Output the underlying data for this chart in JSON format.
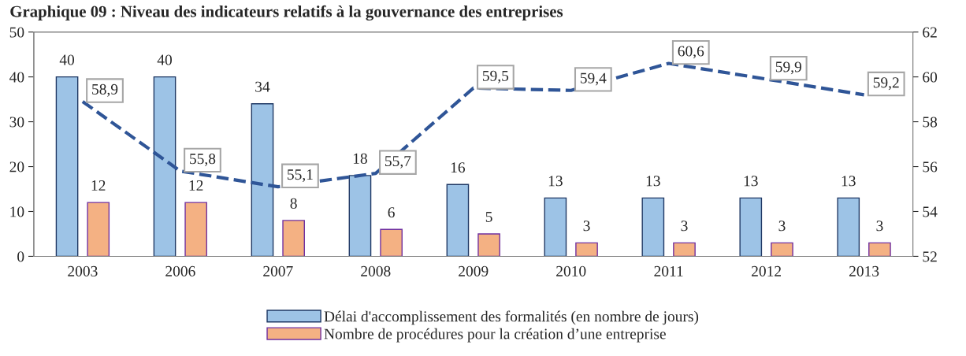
{
  "chart_data": {
    "type": "bar",
    "title": "Graphique 09 : Niveau des indicateurs relatifs à la gouvernance des entreprises",
    "categories": [
      "2003",
      "2006",
      "2007",
      "2008",
      "2009",
      "2010",
      "2011",
      "2012",
      "2013"
    ],
    "series": [
      {
        "name": "Délai d'accomplissement des formalités (en nombre de jours)",
        "color": "#9dc3e6",
        "values": [
          40,
          40,
          34,
          18,
          16,
          13,
          13,
          13,
          13
        ]
      },
      {
        "name": "Nombre de procédures pour la création d’une entreprise",
        "color": "#f4b183",
        "values": [
          12,
          12,
          8,
          6,
          5,
          3,
          3,
          3,
          3
        ]
      },
      {
        "type": "line",
        "axis": "y2",
        "color": "#2f5597",
        "line_style": "dashed",
        "values": [
          58.9,
          55.8,
          55.1,
          55.7,
          59.5,
          59.4,
          60.6,
          59.9,
          59.2
        ],
        "value_labels": [
          "58,9",
          "55,8",
          "55,1",
          "55,7",
          "59,5",
          "59,4",
          "60,6",
          "59,9",
          "59,2"
        ]
      }
    ],
    "ylim": [
      0,
      50
    ],
    "yticks": [
      0,
      10,
      20,
      30,
      40,
      50
    ],
    "y2lim": [
      52,
      62
    ],
    "y2ticks": [
      52,
      54,
      56,
      58,
      60,
      62
    ],
    "data_labels": true,
    "legend": "bottom",
    "grid": false
  }
}
